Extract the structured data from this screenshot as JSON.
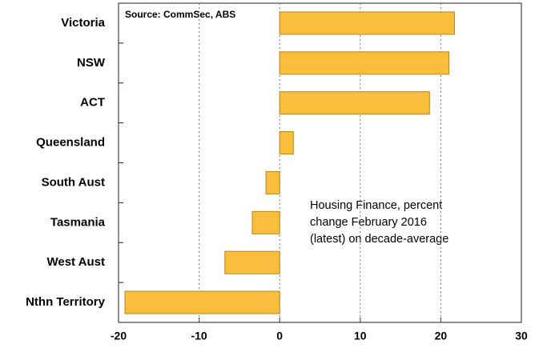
{
  "chart_data": {
    "type": "bar",
    "orientation": "horizontal",
    "source": "Source: CommSec, ABS",
    "note_lines": [
      "Housing Finance, percent",
      "change February 2016",
      "(latest) on decade-average"
    ],
    "categories": [
      "Victoria",
      "NSW",
      "ACT",
      "Queensland",
      "South Aust",
      "Tasmania",
      "West Aust",
      "Nthn Territory"
    ],
    "values": [
      21.7,
      21.0,
      18.6,
      1.7,
      -1.7,
      -3.4,
      -6.8,
      -19.2
    ],
    "color": "#f8be3c",
    "xlim": [
      -20,
      30
    ],
    "xticks": [
      -20,
      -10,
      0,
      10,
      20,
      30
    ],
    "grid": true
  }
}
